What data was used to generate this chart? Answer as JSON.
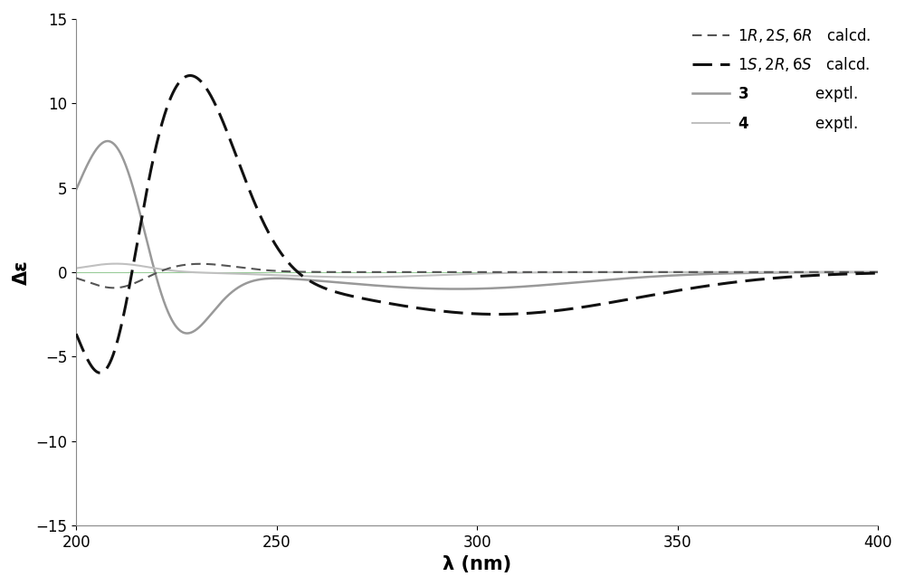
{
  "xlim": [
    200,
    400
  ],
  "ylim": [
    -15,
    15
  ],
  "xticks": [
    200,
    250,
    300,
    350,
    400
  ],
  "yticks": [
    -15,
    -10,
    -5,
    0,
    5,
    10,
    15
  ],
  "xlabel": "λ (nm)",
  "ylabel": "Δε",
  "xlabel_fontsize": 15,
  "ylabel_fontsize": 15,
  "xlabel_fontweight": "bold",
  "ylabel_fontweight": "bold",
  "line1_color": "#555555",
  "line2_color": "#111111",
  "line3_color": "#999999",
  "line4_color": "#c0c0c0",
  "background_color": "#ffffff",
  "legend_fontsize": 12,
  "tick_fontsize": 12,
  "axhline_color": "#99cc99",
  "figsize": [
    10.0,
    6.48
  ],
  "dpi": 100
}
